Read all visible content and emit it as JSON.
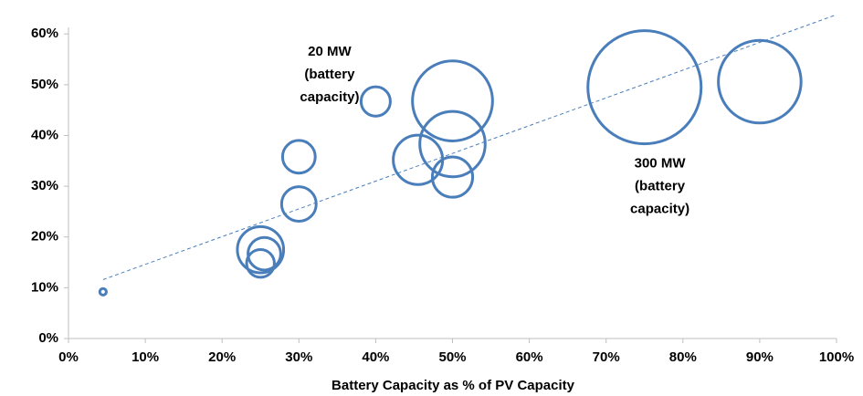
{
  "chart_data": {
    "type": "bubble",
    "x_label": "Battery Capacity as % of PV Capacity",
    "x": [
      4.5,
      25,
      25.5,
      25,
      30,
      30,
      40,
      45.5,
      50,
      50,
      50,
      75,
      90
    ],
    "values": [
      9.2,
      17.5,
      16.7,
      14.8,
      26.5,
      35.8,
      46.7,
      35.2,
      46.8,
      38.3,
      31.8,
      49.5,
      50.6
    ],
    "sizes": [
      1,
      50,
      25,
      18,
      28,
      25,
      20,
      57,
      150,
      100,
      38,
      300,
      160
    ],
    "color": "#4a7ebb",
    "trendline": {
      "x": [
        4.5,
        100
      ],
      "values": [
        11.6,
        63.8
      ]
    },
    "annotations": [
      {
        "lines": [
          "20 MW",
          "(battery",
          "capacity)"
        ],
        "x": 34,
        "y": 55
      },
      {
        "lines": [
          "300 MW",
          "(battery",
          "capacity)"
        ],
        "x": 77,
        "y": 33
      }
    ],
    "xlim": [
      0,
      100
    ],
    "ylim": [
      0,
      60
    ],
    "xticks": [
      {
        "value": 0,
        "label": "0%"
      },
      {
        "value": 10,
        "label": "10%"
      },
      {
        "value": 20,
        "label": "20%"
      },
      {
        "value": 30,
        "label": "30%"
      },
      {
        "value": 40,
        "label": "40%"
      },
      {
        "value": 50,
        "label": "50%"
      },
      {
        "value": 60,
        "label": "60%"
      },
      {
        "value": 70,
        "label": "70%"
      },
      {
        "value": 80,
        "label": "80%"
      },
      {
        "value": 90,
        "label": "90%"
      },
      {
        "value": 100,
        "label": "100%"
      }
    ],
    "yticks": [
      {
        "value": 0,
        "label": "0%"
      },
      {
        "value": 10,
        "label": "10%"
      },
      {
        "value": 20,
        "label": "20%"
      },
      {
        "value": 30,
        "label": "30%"
      },
      {
        "value": 40,
        "label": "40%"
      },
      {
        "value": 50,
        "label": "50%"
      },
      {
        "value": 60,
        "label": "60%"
      }
    ],
    "grid": false
  }
}
